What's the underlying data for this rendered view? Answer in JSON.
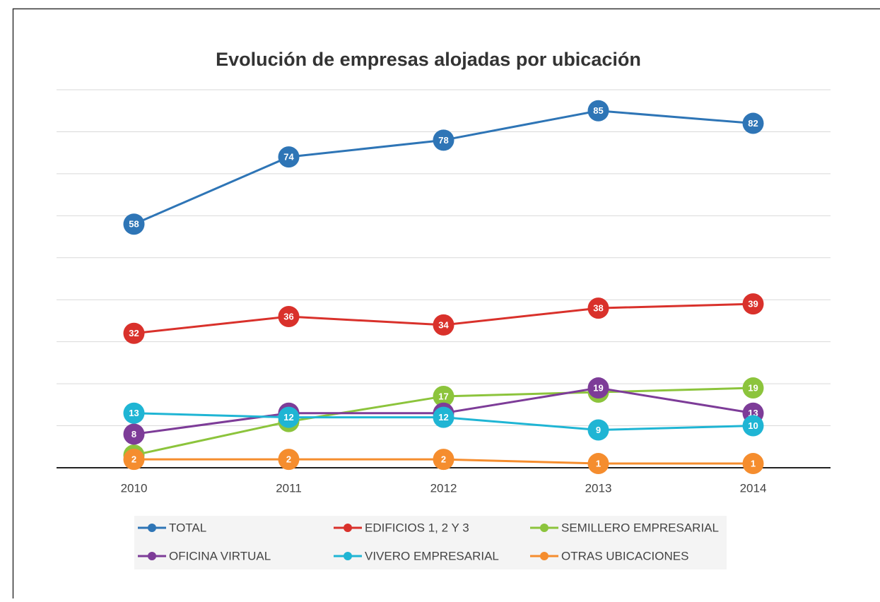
{
  "chart_data": {
    "type": "line",
    "title": "Evolución de empresas alojadas por ubicación",
    "categories": [
      "2010",
      "2011",
      "2012",
      "2013",
      "2014"
    ],
    "ylim": [
      0,
      90
    ],
    "yticks": [
      0,
      10,
      20,
      30,
      40,
      50,
      60,
      70,
      80,
      90
    ],
    "grid": true,
    "series": [
      {
        "name": "TOTAL",
        "color": "#2e75b6",
        "values": [
          58,
          74,
          78,
          85,
          82
        ]
      },
      {
        "name": "EDIFICIOS 1, 2 Y 3",
        "color": "#d9312b",
        "values": [
          32,
          36,
          34,
          38,
          39
        ]
      },
      {
        "name": "SEMILLERO EMPRESARIAL",
        "color": "#8cc43c",
        "values": [
          3,
          11,
          17,
          18,
          19
        ]
      },
      {
        "name": "OFICINA VIRTUAL",
        "color": "#7d3c98",
        "values": [
          8,
          13,
          13,
          19,
          13
        ]
      },
      {
        "name": "VIVERO EMPRESARIAL",
        "color": "#1fb5d4",
        "values": [
          13,
          12,
          12,
          9,
          10
        ]
      },
      {
        "name": "OTRAS UBICACIONES",
        "color": "#f58d2e",
        "values": [
          2,
          2,
          2,
          1,
          1
        ]
      }
    ]
  }
}
